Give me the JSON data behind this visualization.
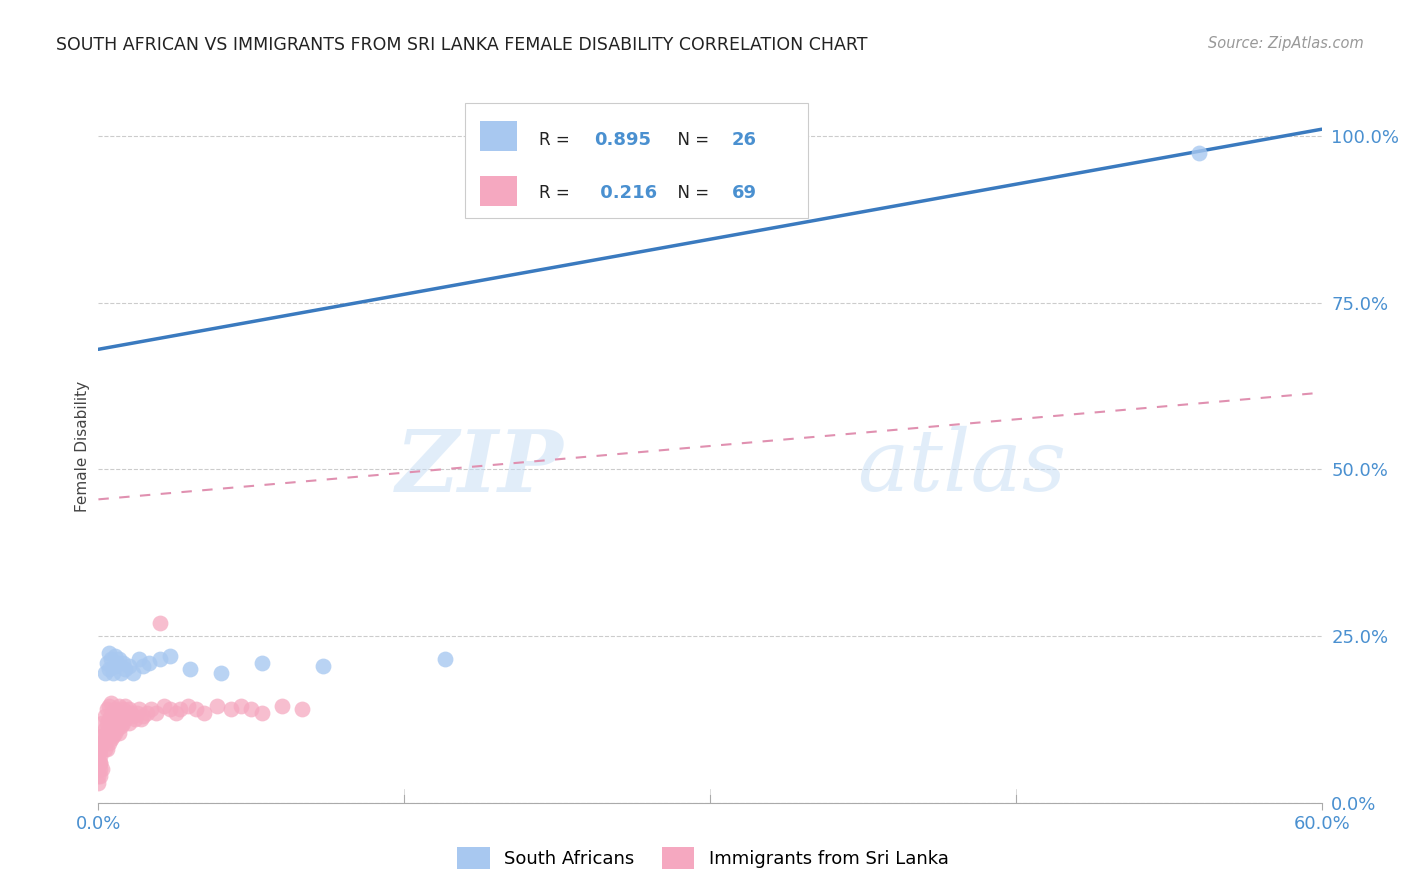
{
  "title": "SOUTH AFRICAN VS IMMIGRANTS FROM SRI LANKA FEMALE DISABILITY CORRELATION CHART",
  "source": "Source: ZipAtlas.com",
  "ylabel_label": "Female Disability",
  "right_yticks": [
    0.0,
    0.25,
    0.5,
    0.75,
    1.0
  ],
  "right_ytick_labels": [
    "0.0%",
    "25.0%",
    "50.0%",
    "75.0%",
    "100.0%"
  ],
  "xlim": [
    0.0,
    0.6
  ],
  "ylim": [
    0.0,
    1.07
  ],
  "sa_R": 0.895,
  "sa_N": 26,
  "sl_R": 0.216,
  "sl_N": 69,
  "sa_color": "#a8c8f0",
  "sl_color": "#f5a8c0",
  "sa_line_color": "#3a7abf",
  "sl_line_color": "#e090b0",
  "watermark_text": "ZIP",
  "watermark_text2": "atlas",
  "sa_line": [
    0.0,
    0.68,
    0.6,
    1.01
  ],
  "sl_line": [
    0.0,
    0.455,
    0.6,
    0.615
  ],
  "sa_scatter_x": [
    0.003,
    0.004,
    0.005,
    0.005,
    0.006,
    0.007,
    0.008,
    0.008,
    0.009,
    0.01,
    0.011,
    0.012,
    0.013,
    0.015,
    0.017,
    0.02,
    0.022,
    0.025,
    0.03,
    0.035,
    0.045,
    0.06,
    0.08,
    0.11,
    0.17,
    0.54
  ],
  "sa_scatter_y": [
    0.195,
    0.21,
    0.225,
    0.2,
    0.215,
    0.195,
    0.205,
    0.22,
    0.21,
    0.215,
    0.195,
    0.21,
    0.2,
    0.205,
    0.195,
    0.215,
    0.205,
    0.21,
    0.215,
    0.22,
    0.2,
    0.195,
    0.21,
    0.205,
    0.215,
    0.975
  ],
  "sl_scatter_x": [
    0.001,
    0.001,
    0.002,
    0.002,
    0.002,
    0.003,
    0.003,
    0.003,
    0.004,
    0.004,
    0.004,
    0.004,
    0.005,
    0.005,
    0.005,
    0.005,
    0.006,
    0.006,
    0.006,
    0.006,
    0.007,
    0.007,
    0.007,
    0.008,
    0.008,
    0.008,
    0.009,
    0.009,
    0.01,
    0.01,
    0.01,
    0.011,
    0.011,
    0.012,
    0.012,
    0.013,
    0.013,
    0.014,
    0.015,
    0.015,
    0.016,
    0.017,
    0.018,
    0.019,
    0.02,
    0.021,
    0.022,
    0.024,
    0.026,
    0.028,
    0.03,
    0.032,
    0.035,
    0.038,
    0.04,
    0.044,
    0.048,
    0.052,
    0.058,
    0.065,
    0.07,
    0.075,
    0.08,
    0.09,
    0.1,
    0.0,
    0.0,
    0.001,
    0.001
  ],
  "sl_scatter_y": [
    0.06,
    0.08,
    0.09,
    0.1,
    0.12,
    0.095,
    0.11,
    0.13,
    0.08,
    0.105,
    0.12,
    0.14,
    0.09,
    0.11,
    0.125,
    0.145,
    0.095,
    0.115,
    0.13,
    0.15,
    0.1,
    0.12,
    0.135,
    0.105,
    0.125,
    0.14,
    0.11,
    0.13,
    0.105,
    0.125,
    0.145,
    0.115,
    0.135,
    0.12,
    0.14,
    0.125,
    0.145,
    0.13,
    0.12,
    0.14,
    0.135,
    0.13,
    0.125,
    0.135,
    0.14,
    0.125,
    0.13,
    0.135,
    0.14,
    0.135,
    0.27,
    0.145,
    0.14,
    0.135,
    0.14,
    0.145,
    0.14,
    0.135,
    0.145,
    0.14,
    0.145,
    0.14,
    0.135,
    0.145,
    0.14,
    0.06,
    0.04,
    0.05,
    0.07
  ],
  "sl_scatter_extra_x": [
    0.0,
    0.0,
    0.001,
    0.0,
    0.001,
    0.001,
    0.002,
    0.002,
    0.003
  ],
  "sl_scatter_extra_y": [
    0.03,
    0.05,
    0.04,
    0.07,
    0.06,
    0.08,
    0.05,
    0.1,
    0.08
  ]
}
